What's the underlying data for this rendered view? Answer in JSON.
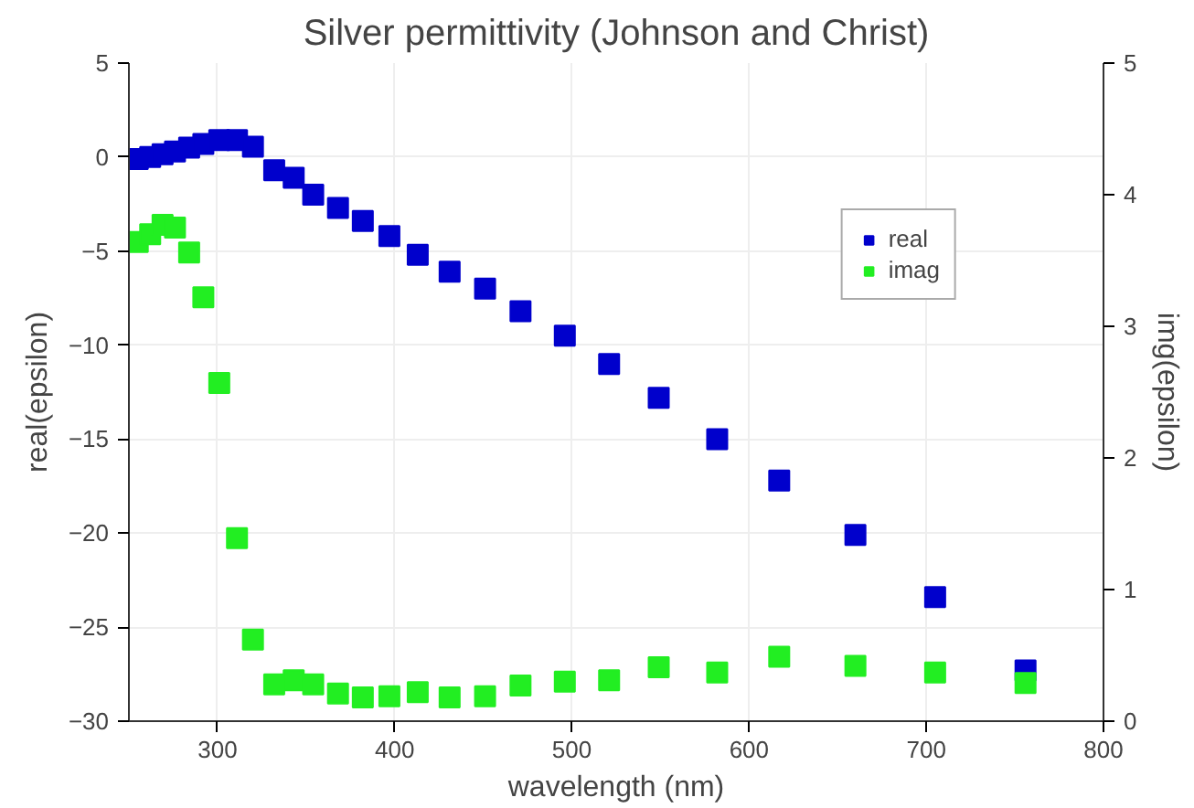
{
  "chart_data": {
    "type": "scatter",
    "title": "Silver permittivity (Johnson and Christ)",
    "xlabel": "wavelength (nm)",
    "ylabel": "real(epsilon)",
    "y2label": "img(epsilon)",
    "x": [
      255,
      262,
      269,
      276,
      284,
      292,
      301,
      311,
      320,
      332,
      343,
      354,
      368,
      382,
      397,
      413,
      431,
      451,
      471,
      496,
      521,
      549,
      582,
      617,
      660,
      705,
      756
    ],
    "series": [
      {
        "name": "real",
        "color": "#0000cc",
        "values": [
          -0.1,
          0.0,
          0.15,
          0.3,
          0.5,
          0.7,
          0.9,
          0.9,
          0.55,
          -0.7,
          -1.1,
          -2.0,
          -2.7,
          -3.4,
          -4.2,
          -5.2,
          -6.1,
          -7.0,
          -8.2,
          -9.5,
          -11.0,
          -12.8,
          -15.0,
          -17.2,
          -20.1,
          -23.4,
          -27.3
        ]
      },
      {
        "name": "imag",
        "color": "#22ee22",
        "axis": "y2",
        "values": [
          3.64,
          3.7,
          3.77,
          3.75,
          3.56,
          3.22,
          2.57,
          1.39,
          0.62,
          0.28,
          0.31,
          0.28,
          0.21,
          0.18,
          0.19,
          0.22,
          0.18,
          0.19,
          0.27,
          0.3,
          0.31,
          0.41,
          0.37,
          0.49,
          0.42,
          0.37,
          0.29
        ]
      }
    ],
    "xlim": [
      250,
      800
    ],
    "xticks": [
      300,
      400,
      500,
      600,
      700,
      800
    ],
    "ylim": [
      -30,
      5
    ],
    "yticks": [
      -30,
      -25,
      -20,
      -15,
      -10,
      -5,
      0,
      5
    ],
    "y2lim": [
      0,
      5
    ],
    "y2ticks": [
      0,
      1,
      2,
      3,
      4,
      5
    ],
    "grid": true,
    "legend": "top right",
    "marker": "square"
  }
}
